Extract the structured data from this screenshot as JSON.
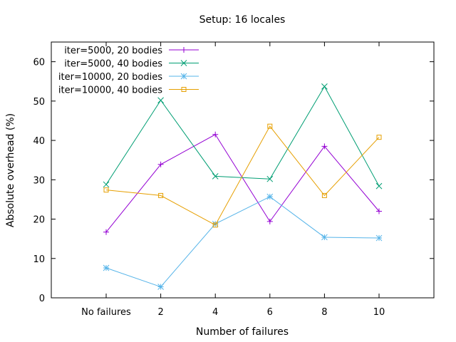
{
  "chart_data": {
    "type": "line",
    "title": "Setup: 16 locales",
    "xlabel": "Number of failures",
    "ylabel": "Absolute overhead (%)",
    "categories": [
      "No failures",
      "2",
      "4",
      "6",
      "8",
      "10"
    ],
    "ylim": [
      0,
      65
    ],
    "yticks": [
      0,
      10,
      20,
      30,
      40,
      50,
      60
    ],
    "grid": false,
    "legend": "top-left",
    "series": [
      {
        "name": "iter=5000, 20 bodies",
        "color": "#9400d3",
        "marker": "plus",
        "values": [
          16.7,
          33.9,
          41.5,
          19.4,
          38.5,
          22.0
        ]
      },
      {
        "name": "iter=5000, 40 bodies",
        "color": "#009e73",
        "marker": "cross",
        "values": [
          28.8,
          50.2,
          30.9,
          30.2,
          53.7,
          28.4
        ]
      },
      {
        "name": "iter=10000, 20 bodies",
        "color": "#56b4e9",
        "marker": "star",
        "values": [
          7.6,
          2.8,
          18.8,
          25.7,
          15.4,
          15.2
        ]
      },
      {
        "name": "iter=10000, 40 bodies",
        "color": "#e69f00",
        "marker": "square",
        "values": [
          27.4,
          26.0,
          18.5,
          43.6,
          26.0,
          40.8
        ]
      }
    ]
  }
}
